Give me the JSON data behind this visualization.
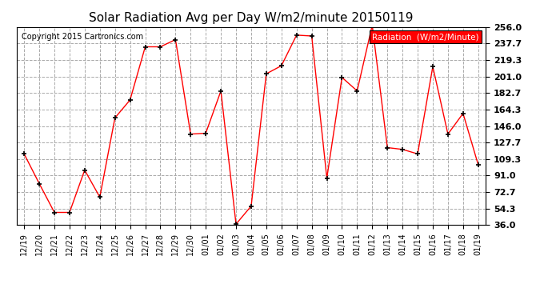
{
  "title": "Solar Radiation Avg per Day W/m2/minute 20150119",
  "copyright": "Copyright 2015 Cartronics.com",
  "legend_label": "Radiation  (W/m2/Minute)",
  "dates": [
    "12/19",
    "12/20",
    "12/21",
    "12/22",
    "12/23",
    "12/24",
    "12/25",
    "12/26",
    "12/27",
    "12/28",
    "12/29",
    "12/30",
    "01/01",
    "01/02",
    "01/03",
    "01/04",
    "01/05",
    "01/06",
    "01/07",
    "01/08",
    "01/09",
    "01/10",
    "01/11",
    "01/12",
    "01/13",
    "01/14",
    "01/15",
    "01/16",
    "01/17",
    "01/18",
    "01/19"
  ],
  "values": [
    115,
    82,
    50,
    50,
    97,
    67,
    155,
    175,
    234,
    234,
    242,
    137,
    138,
    185,
    37,
    57,
    204,
    213,
    247,
    246,
    88,
    200,
    185,
    258,
    122,
    120,
    115,
    212,
    137,
    160,
    103
  ],
  "y_ticks": [
    36.0,
    54.3,
    72.7,
    91.0,
    109.3,
    127.7,
    146.0,
    164.3,
    182.7,
    201.0,
    219.3,
    237.7,
    256.0
  ],
  "y_min": 36.0,
  "y_max": 256.0,
  "line_color": "red",
  "marker_color": "black",
  "bg_color": "#ffffff",
  "plot_bg_color": "#ffffff",
  "grid_color": "#aaaaaa",
  "title_fontsize": 11,
  "legend_bg": "#ff0000",
  "legend_text_color": "#ffffff"
}
